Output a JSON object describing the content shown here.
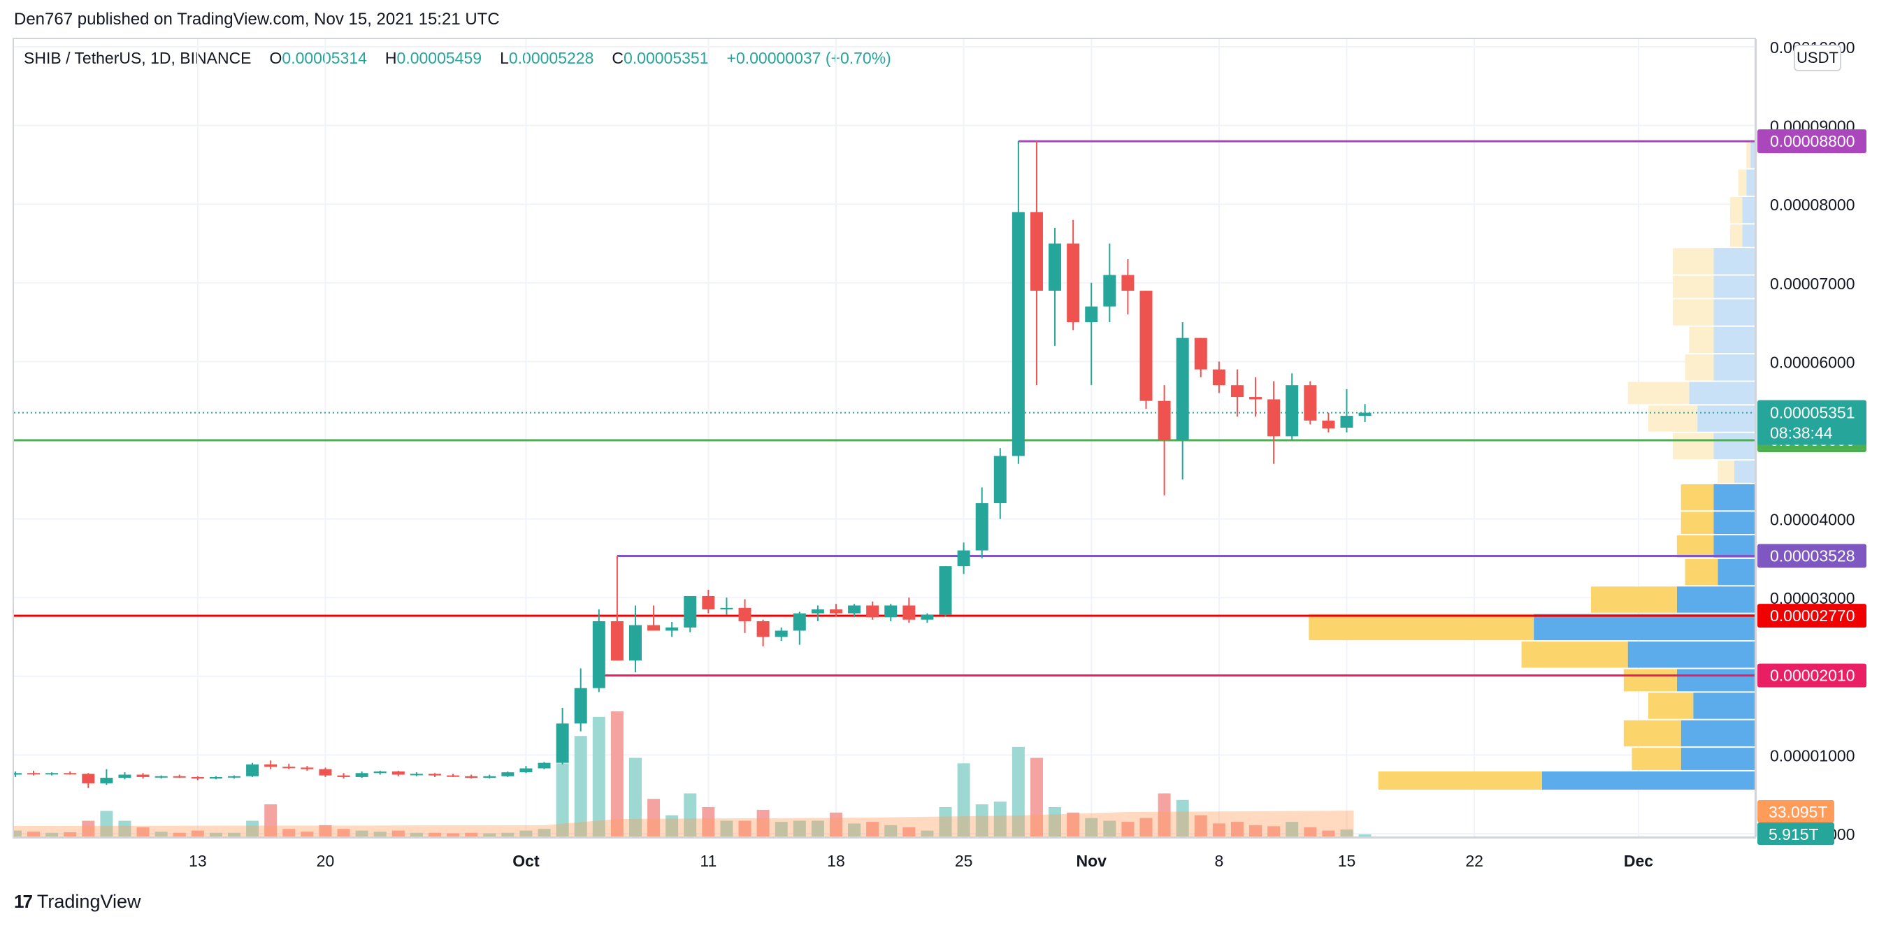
{
  "header": {
    "published": "Den767 published on TradingView.com, Nov 15, 2021 15:21 UTC"
  },
  "legend": {
    "symbol": "SHIB / TetherUS, 1D, BINANCE",
    "o_label": "O",
    "o_value": "0.00005314",
    "h_label": "H",
    "h_value": "0.00005459",
    "l_label": "L",
    "l_value": "0.00005228",
    "c_label": "C",
    "c_value": "0.00005351",
    "change": "+0.00000037 (+0.70%)"
  },
  "currency": "USDT",
  "footer": {
    "brand": "TradingView",
    "brand_mark": "17"
  },
  "colors": {
    "up": "#26a69a",
    "down": "#ef5350",
    "vol_up": "#9ed8d2",
    "vol_down": "#f5a3a1",
    "grid": "#f0f3fa",
    "axis_text": "#131722"
  },
  "chart_data": {
    "type": "candlestick",
    "ylim": [
      0,
      0.0001
    ],
    "y_ticks": [
      "0.00000000",
      "0.00001000",
      "0.00002000",
      "0.00003000",
      "0.00004000",
      "0.00005000",
      "0.00006000",
      "0.00007000",
      "0.00008000",
      "0.00009000",
      "0.00010000"
    ],
    "x_ticks": [
      {
        "label": "13",
        "date": "2021-09-13"
      },
      {
        "label": "20",
        "date": "2021-09-20"
      },
      {
        "label": "Oct",
        "date": "2021-10-01",
        "bold": true
      },
      {
        "label": "11",
        "date": "2021-10-11"
      },
      {
        "label": "18",
        "date": "2021-10-18"
      },
      {
        "label": "25",
        "date": "2021-10-25"
      },
      {
        "label": "Nov",
        "date": "2021-11-01",
        "bold": true
      },
      {
        "label": "8",
        "date": "2021-11-08"
      },
      {
        "label": "15",
        "date": "2021-11-15"
      },
      {
        "label": "22",
        "date": "2021-11-22"
      },
      {
        "label": "Dec",
        "date": "2021-12-01",
        "bold": true
      }
    ],
    "candles": [
      {
        "date": "2021-09-03",
        "o": 7.5e-06,
        "h": 7.9e-06,
        "l": 7.2e-06,
        "c": 7.7e-06,
        "vol": 0.12
      },
      {
        "date": "2021-09-04",
        "o": 7.7e-06,
        "h": 8e-06,
        "l": 7.4e-06,
        "c": 7.6e-06,
        "vol": 0.1
      },
      {
        "date": "2021-09-05",
        "o": 7.6e-06,
        "h": 7.8e-06,
        "l": 7.4e-06,
        "c": 7.7e-06,
        "vol": 0.08
      },
      {
        "date": "2021-09-06",
        "o": 7.7e-06,
        "h": 7.9e-06,
        "l": 7.5e-06,
        "c": 7.6e-06,
        "vol": 0.09
      },
      {
        "date": "2021-09-07",
        "o": 7.6e-06,
        "h": 7.7e-06,
        "l": 5.8e-06,
        "c": 6.4e-06,
        "vol": 0.3
      },
      {
        "date": "2021-09-08",
        "o": 6.4e-06,
        "h": 8.2e-06,
        "l": 6.2e-06,
        "c": 7.1e-06,
        "vol": 0.48
      },
      {
        "date": "2021-09-09",
        "o": 7.1e-06,
        "h": 7.8e-06,
        "l": 6.9e-06,
        "c": 7.5e-06,
        "vol": 0.3
      },
      {
        "date": "2021-09-10",
        "o": 7.5e-06,
        "h": 7.7e-06,
        "l": 7e-06,
        "c": 7.2e-06,
        "vol": 0.18
      },
      {
        "date": "2021-09-11",
        "o": 7.2e-06,
        "h": 7.4e-06,
        "l": 7e-06,
        "c": 7.3e-06,
        "vol": 0.1
      },
      {
        "date": "2021-09-12",
        "o": 7.3e-06,
        "h": 7.5e-06,
        "l": 7.1e-06,
        "c": 7.2e-06,
        "vol": 0.08
      },
      {
        "date": "2021-09-13",
        "o": 7.2e-06,
        "h": 7.3e-06,
        "l": 6.8e-06,
        "c": 7e-06,
        "vol": 0.12
      },
      {
        "date": "2021-09-14",
        "o": 7e-06,
        "h": 7.3e-06,
        "l": 6.9e-06,
        "c": 7.2e-06,
        "vol": 0.08
      },
      {
        "date": "2021-09-15",
        "o": 7.2e-06,
        "h": 7.4e-06,
        "l": 7e-06,
        "c": 7.3e-06,
        "vol": 0.08
      },
      {
        "date": "2021-09-16",
        "o": 7.3e-06,
        "h": 9e-06,
        "l": 7.2e-06,
        "c": 8.8e-06,
        "vol": 0.3
      },
      {
        "date": "2021-09-17",
        "o": 8.8e-06,
        "h": 9.3e-06,
        "l": 8.2e-06,
        "c": 8.5e-06,
        "vol": 0.6
      },
      {
        "date": "2021-09-18",
        "o": 8.5e-06,
        "h": 8.9e-06,
        "l": 8.2e-06,
        "c": 8.4e-06,
        "vol": 0.15
      },
      {
        "date": "2021-09-19",
        "o": 8.4e-06,
        "h": 8.6e-06,
        "l": 8e-06,
        "c": 8.2e-06,
        "vol": 0.1
      },
      {
        "date": "2021-09-20",
        "o": 8.2e-06,
        "h": 8.4e-06,
        "l": 7.2e-06,
        "c": 7.4e-06,
        "vol": 0.22
      },
      {
        "date": "2021-09-21",
        "o": 7.4e-06,
        "h": 7.7e-06,
        "l": 7e-06,
        "c": 7.2e-06,
        "vol": 0.15
      },
      {
        "date": "2021-09-22",
        "o": 7.2e-06,
        "h": 7.9e-06,
        "l": 7.1e-06,
        "c": 7.7e-06,
        "vol": 0.12
      },
      {
        "date": "2021-09-23",
        "o": 7.7e-06,
        "h": 8e-06,
        "l": 7.5e-06,
        "c": 7.9e-06,
        "vol": 0.1
      },
      {
        "date": "2021-09-24",
        "o": 7.9e-06,
        "h": 8e-06,
        "l": 7.3e-06,
        "c": 7.5e-06,
        "vol": 0.12
      },
      {
        "date": "2021-09-25",
        "o": 7.5e-06,
        "h": 7.8e-06,
        "l": 7.3e-06,
        "c": 7.6e-06,
        "vol": 0.08
      },
      {
        "date": "2021-09-26",
        "o": 7.6e-06,
        "h": 7.7e-06,
        "l": 7.2e-06,
        "c": 7.4e-06,
        "vol": 0.08
      },
      {
        "date": "2021-09-27",
        "o": 7.4e-06,
        "h": 7.6e-06,
        "l": 7.2e-06,
        "c": 7.3e-06,
        "vol": 0.07
      },
      {
        "date": "2021-09-28",
        "o": 7.3e-06,
        "h": 7.5e-06,
        "l": 7e-06,
        "c": 7.1e-06,
        "vol": 0.08
      },
      {
        "date": "2021-09-29",
        "o": 7.1e-06,
        "h": 7.5e-06,
        "l": 7e-06,
        "c": 7.3e-06,
        "vol": 0.07
      },
      {
        "date": "2021-09-30",
        "o": 7.3e-06,
        "h": 7.9e-06,
        "l": 7.2e-06,
        "c": 7.8e-06,
        "vol": 0.08
      },
      {
        "date": "2021-10-01",
        "o": 7.8e-06,
        "h": 8.6e-06,
        "l": 7.7e-06,
        "c": 8.3e-06,
        "vol": 0.12
      },
      {
        "date": "2021-10-02",
        "o": 8.3e-06,
        "h": 9.1e-06,
        "l": 8.2e-06,
        "c": 9e-06,
        "vol": 0.15
      },
      {
        "date": "2021-10-03",
        "o": 9e-06,
        "h": 1.6e-05,
        "l": 8.8e-06,
        "c": 1.4e-05,
        "vol": 1.35
      },
      {
        "date": "2021-10-04",
        "o": 1.4e-05,
        "h": 2.1e-05,
        "l": 1.3e-05,
        "c": 1.85e-05,
        "vol": 1.85
      },
      {
        "date": "2021-10-05",
        "o": 1.85e-05,
        "h": 2.85e-05,
        "l": 1.8e-05,
        "c": 2.7e-05,
        "vol": 2.2
      },
      {
        "date": "2021-10-06",
        "o": 2.7e-05,
        "h": 3.53e-05,
        "l": 2.2e-05,
        "c": 2.2e-05,
        "vol": 2.3
      },
      {
        "date": "2021-10-07",
        "o": 2.2e-05,
        "h": 2.9e-05,
        "l": 2.05e-05,
        "c": 2.65e-05,
        "vol": 1.45
      },
      {
        "date": "2021-10-08",
        "o": 2.65e-05,
        "h": 2.9e-05,
        "l": 2.58e-05,
        "c": 2.58e-05,
        "vol": 0.7
      },
      {
        "date": "2021-10-09",
        "o": 2.58e-05,
        "h": 2.69e-05,
        "l": 2.5e-05,
        "c": 2.62e-05,
        "vol": 0.4
      },
      {
        "date": "2021-10-10",
        "o": 2.62e-05,
        "h": 3e-05,
        "l": 2.56e-05,
        "c": 3.02e-05,
        "vol": 0.8
      },
      {
        "date": "2021-10-11",
        "o": 3.02e-05,
        "h": 3.1e-05,
        "l": 2.8e-05,
        "c": 2.85e-05,
        "vol": 0.55
      },
      {
        "date": "2021-10-12",
        "o": 2.85e-05,
        "h": 3e-05,
        "l": 2.78e-05,
        "c": 2.87e-05,
        "vol": 0.3
      },
      {
        "date": "2021-10-13",
        "o": 2.87e-05,
        "h": 2.98e-05,
        "l": 2.55e-05,
        "c": 2.7e-05,
        "vol": 0.3
      },
      {
        "date": "2021-10-14",
        "o": 2.7e-05,
        "h": 2.72e-05,
        "l": 2.38e-05,
        "c": 2.5e-05,
        "vol": 0.5
      },
      {
        "date": "2021-10-15",
        "o": 2.5e-05,
        "h": 2.62e-05,
        "l": 2.45e-05,
        "c": 2.58e-05,
        "vol": 0.28
      },
      {
        "date": "2021-10-16",
        "o": 2.58e-05,
        "h": 2.82e-05,
        "l": 2.4e-05,
        "c": 2.8e-05,
        "vol": 0.3
      },
      {
        "date": "2021-10-17",
        "o": 2.8e-05,
        "h": 2.9e-05,
        "l": 2.7e-05,
        "c": 2.85e-05,
        "vol": 0.3
      },
      {
        "date": "2021-10-18",
        "o": 2.85e-05,
        "h": 2.92e-05,
        "l": 2.76e-05,
        "c": 2.8e-05,
        "vol": 0.45
      },
      {
        "date": "2021-10-19",
        "o": 2.8e-05,
        "h": 2.92e-05,
        "l": 2.75e-05,
        "c": 2.9e-05,
        "vol": 0.25
      },
      {
        "date": "2021-10-20",
        "o": 2.9e-05,
        "h": 2.95e-05,
        "l": 2.72e-05,
        "c": 2.75e-05,
        "vol": 0.28
      },
      {
        "date": "2021-10-21",
        "o": 2.75e-05,
        "h": 2.92e-05,
        "l": 2.7e-05,
        "c": 2.9e-05,
        "vol": 0.22
      },
      {
        "date": "2021-10-22",
        "o": 2.9e-05,
        "h": 3e-05,
        "l": 2.68e-05,
        "c": 2.72e-05,
        "vol": 0.18
      },
      {
        "date": "2021-10-23",
        "o": 2.72e-05,
        "h": 2.8e-05,
        "l": 2.68e-05,
        "c": 2.78e-05,
        "vol": 0.12
      },
      {
        "date": "2021-10-24",
        "o": 2.78e-05,
        "h": 3.4e-05,
        "l": 2.76e-05,
        "c": 3.4e-05,
        "vol": 0.55
      },
      {
        "date": "2021-10-25",
        "o": 3.4e-05,
        "h": 3.7e-05,
        "l": 3.3e-05,
        "c": 3.6e-05,
        "vol": 1.35
      },
      {
        "date": "2021-10-26",
        "o": 3.6e-05,
        "h": 4.4e-05,
        "l": 3.5e-05,
        "c": 4.2e-05,
        "vol": 0.6
      },
      {
        "date": "2021-10-27",
        "o": 4.2e-05,
        "h": 4.9e-05,
        "l": 4e-05,
        "c": 4.8e-05,
        "vol": 0.65
      },
      {
        "date": "2021-10-28",
        "o": 4.8e-05,
        "h": 8.8e-05,
        "l": 4.7e-05,
        "c": 7.9e-05,
        "vol": 1.65
      },
      {
        "date": "2021-10-29",
        "o": 7.9e-05,
        "h": 8.8e-05,
        "l": 5.7e-05,
        "c": 6.9e-05,
        "vol": 1.45
      },
      {
        "date": "2021-10-30",
        "o": 6.9e-05,
        "h": 7.7e-05,
        "l": 6.2e-05,
        "c": 7.5e-05,
        "vol": 0.55
      },
      {
        "date": "2021-10-31",
        "o": 7.5e-05,
        "h": 7.8e-05,
        "l": 6.4e-05,
        "c": 6.5e-05,
        "vol": 0.45
      },
      {
        "date": "2021-11-01",
        "o": 6.5e-05,
        "h": 7e-05,
        "l": 5.7e-05,
        "c": 6.7e-05,
        "vol": 0.35
      },
      {
        "date": "2021-11-02",
        "o": 6.7e-05,
        "h": 7.5e-05,
        "l": 6.5e-05,
        "c": 7.1e-05,
        "vol": 0.3
      },
      {
        "date": "2021-11-03",
        "o": 7.1e-05,
        "h": 7.3e-05,
        "l": 6.6e-05,
        "c": 6.9e-05,
        "vol": 0.28
      },
      {
        "date": "2021-11-04",
        "o": 6.9e-05,
        "h": 6.9e-05,
        "l": 5.4e-05,
        "c": 5.5e-05,
        "vol": 0.35
      },
      {
        "date": "2021-11-05",
        "o": 5.5e-05,
        "h": 5.7e-05,
        "l": 4.3e-05,
        "c": 5e-05,
        "vol": 0.8
      },
      {
        "date": "2021-11-06",
        "o": 5e-05,
        "h": 6.5e-05,
        "l": 4.5e-05,
        "c": 6.3e-05,
        "vol": 0.68
      },
      {
        "date": "2021-11-07",
        "o": 6.3e-05,
        "h": 6.3e-05,
        "l": 5.8e-05,
        "c": 5.9e-05,
        "vol": 0.4
      },
      {
        "date": "2021-11-08",
        "o": 5.9e-05,
        "h": 6e-05,
        "l": 5.6e-05,
        "c": 5.7e-05,
        "vol": 0.25
      },
      {
        "date": "2021-11-09",
        "o": 5.7e-05,
        "h": 5.9e-05,
        "l": 5.3e-05,
        "c": 5.55e-05,
        "vol": 0.28
      },
      {
        "date": "2021-11-10",
        "o": 5.55e-05,
        "h": 5.8e-05,
        "l": 5.3e-05,
        "c": 5.52e-05,
        "vol": 0.22
      },
      {
        "date": "2021-11-11",
        "o": 5.52e-05,
        "h": 5.75e-05,
        "l": 4.7e-05,
        "c": 5.05e-05,
        "vol": 0.2
      },
      {
        "date": "2021-11-12",
        "o": 5.05e-05,
        "h": 5.85e-05,
        "l": 5e-05,
        "c": 5.7e-05,
        "vol": 0.28
      },
      {
        "date": "2021-11-13",
        "o": 5.7e-05,
        "h": 5.75e-05,
        "l": 5.2e-05,
        "c": 5.25e-05,
        "vol": 0.18
      },
      {
        "date": "2021-11-14",
        "o": 5.25e-05,
        "h": 5.35e-05,
        "l": 5.1e-05,
        "c": 5.15e-05,
        "vol": 0.12
      },
      {
        "date": "2021-11-15",
        "o": 5.16e-05,
        "h": 5.65e-05,
        "l": 5.1e-05,
        "c": 5.31e-05,
        "vol": 0.14
      },
      {
        "date": "2021-11-16",
        "o": 5.31e-05,
        "h": 5.46e-05,
        "l": 5.23e-05,
        "c": 5.35e-05,
        "vol": 0.05
      }
    ],
    "horizontal_lines": [
      {
        "price": 8.8e-05,
        "color": "#ab47bc",
        "label": "0.00008800",
        "from": "2021-10-28"
      },
      {
        "price": 5e-05,
        "color": "#4caf50",
        "label": "0.00005000",
        "from": null
      },
      {
        "price": 3.53e-05,
        "color": "#7e57c2",
        "label": "0.00003528",
        "from": "2021-10-06"
      },
      {
        "price": 2.77e-05,
        "color": "#f00000",
        "label": "0.00002770",
        "from": null
      },
      {
        "price": 2.01e-05,
        "color": "#e91e63",
        "label": "0.00002010",
        "from": "2021-10-05"
      }
    ],
    "last_price": {
      "value": 5.35e-05,
      "label": "0.00005351",
      "countdown": "08:38:44"
    },
    "volume_labels": [
      {
        "label": "33.095T",
        "color": "#ff9c5a"
      },
      {
        "label": "5.915T",
        "color": "#26a69a"
      }
    ],
    "volume_profile": [
      {
        "from": 5.5e-06,
        "to": 8e-06,
        "up": 0.52,
        "down": 0.4
      },
      {
        "from": 8e-06,
        "to": 1.1e-05,
        "up": 0.18,
        "down": 0.12
      },
      {
        "from": 1.1e-05,
        "to": 1.45e-05,
        "up": 0.18,
        "down": 0.14
      },
      {
        "from": 1.45e-05,
        "to": 1.8e-05,
        "up": 0.15,
        "down": 0.11
      },
      {
        "from": 1.8e-05,
        "to": 2.1e-05,
        "up": 0.19,
        "down": 0.13
      },
      {
        "from": 2.1e-05,
        "to": 2.45e-05,
        "up": 0.31,
        "down": 0.26
      },
      {
        "from": 2.45e-05,
        "to": 2.8e-05,
        "up": 0.54,
        "down": 0.55
      },
      {
        "from": 2.8e-05,
        "to": 3.15e-05,
        "up": 0.19,
        "down": 0.21
      },
      {
        "from": 3.15e-05,
        "to": 3.5e-05,
        "up": 0.09,
        "down": 0.08
      },
      {
        "from": 3.5e-05,
        "to": 3.8e-05,
        "up": 0.1,
        "down": 0.09
      },
      {
        "from": 3.8e-05,
        "to": 4.1e-05,
        "up": 0.1,
        "down": 0.08
      },
      {
        "from": 4.1e-05,
        "to": 4.45e-05,
        "up": 0.1,
        "down": 0.08
      },
      {
        "from": 4.45e-05,
        "to": 4.75e-05,
        "up": 0.05,
        "down": 0.04
      },
      {
        "from": 4.75e-05,
        "to": 5.1e-05,
        "up": 0.1,
        "down": 0.1
      },
      {
        "from": 5.1e-05,
        "to": 5.45e-05,
        "up": 0.14,
        "down": 0.12
      },
      {
        "from": 5.45e-05,
        "to": 5.75e-05,
        "up": 0.16,
        "down": 0.15
      },
      {
        "from": 5.75e-05,
        "to": 6.1e-05,
        "up": 0.1,
        "down": 0.07
      },
      {
        "from": 6.1e-05,
        "to": 6.45e-05,
        "up": 0.1,
        "down": 0.06
      },
      {
        "from": 6.45e-05,
        "to": 6.8e-05,
        "up": 0.1,
        "down": 0.1
      },
      {
        "from": 6.8e-05,
        "to": 7.1e-05,
        "up": 0.1,
        "down": 0.1
      },
      {
        "from": 7.1e-05,
        "to": 7.45e-05,
        "up": 0.1,
        "down": 0.1
      },
      {
        "from": 7.45e-05,
        "to": 7.75e-05,
        "up": 0.03,
        "down": 0.03
      },
      {
        "from": 7.75e-05,
        "to": 8.1e-05,
        "up": 0.03,
        "down": 0.03
      },
      {
        "from": 8.1e-05,
        "to": 8.45e-05,
        "up": 0.02,
        "down": 0.02
      },
      {
        "from": 8.45e-05,
        "to": 8.8e-05,
        "up": 0.01,
        "down": 0.01
      }
    ]
  }
}
